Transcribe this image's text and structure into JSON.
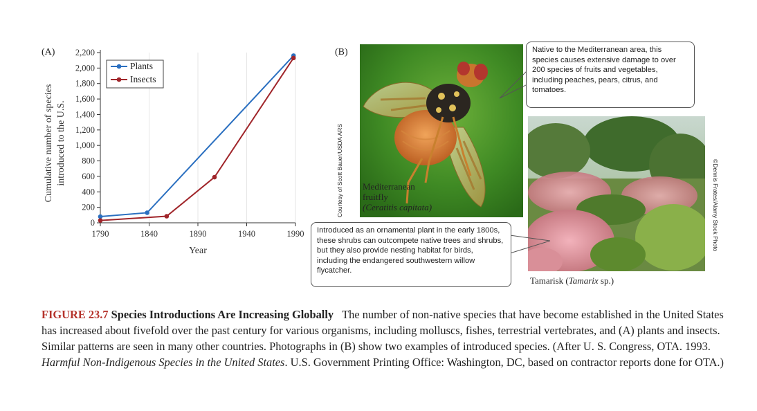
{
  "panel_a": {
    "label": "(A)"
  },
  "panel_b": {
    "label": "(B)"
  },
  "chart_data": {
    "type": "line",
    "title": "",
    "xlabel": "Year",
    "ylabel": "Cumulative number of species introduced to the U.S.",
    "ylabel_lines": [
      "Cumulative number of species",
      "introduced to the U.S."
    ],
    "xlim": [
      1790,
      1990
    ],
    "ylim": [
      0,
      2200
    ],
    "xticks": [
      1790,
      1840,
      1890,
      1940,
      1990
    ],
    "xtick_labels": [
      "1790",
      "1840",
      "1890",
      "1940",
      "1990"
    ],
    "yticks": [
      0,
      200,
      400,
      600,
      800,
      1000,
      1200,
      1400,
      1600,
      1800,
      2000,
      2200
    ],
    "ytick_labels": [
      "0",
      "200",
      "400",
      "600",
      "800",
      "1,000",
      "1,200",
      "1,400",
      "1,600",
      "1,800",
      "2,000",
      "2,200"
    ],
    "legend_position": "top-left",
    "series": [
      {
        "name": "Plants",
        "color": "#2a6fc0",
        "x": [
          1790,
          1838,
          1988
        ],
        "y": [
          80,
          130,
          2160
        ]
      },
      {
        "name": "Insects",
        "color": "#a0252a",
        "x": [
          1790,
          1858,
          1907,
          1988
        ],
        "y": [
          30,
          85,
          590,
          2130
        ]
      }
    ]
  },
  "fruitfly": {
    "credit": "Courtesy of Scott Bauer/USDA ARS",
    "name_line1": "Mediterranean",
    "name_line2": "fruitfly",
    "scientific": "(Ceratitis capitata)",
    "callout": "Native to the Mediterranean area, this species causes extensive damage to over 200 species of fruits and vegetables, including peaches, pears, citrus, and tomatoes."
  },
  "tamarisk": {
    "credit": "©Dennis Frates/Alamy Stock Photo",
    "label_prefix": "Tamarisk (",
    "label_italic": "Tamarix",
    "label_suffix": " sp.)",
    "callout": "Introduced as an ornamental plant in the early 1800s, these shrubs can outcompete native trees and shrubs, but they also provide nesting habitat for birds, including the endangered southwestern willow flycatcher."
  },
  "caption": {
    "figure_number": "FIGURE 23.7",
    "title": "Species Introductions Are Increasing Globally",
    "text_1": "The number of non-native species that have become established in the United States has increased about fivefold over the past century for various organisms, including molluscs, fishes, terrestrial vertebrates, and (A) plants and insects. Similar patterns are seen in many other countries. Photographs in (B) show two examples of introduced species. (After U. S. Congress, OTA. 1993. ",
    "italic_title": "Harmful Non-Indigenous Species in the United States",
    "text_2": ". U.S. Government Printing Office: Washington, DC, based on contractor reports done for OTA.)"
  }
}
